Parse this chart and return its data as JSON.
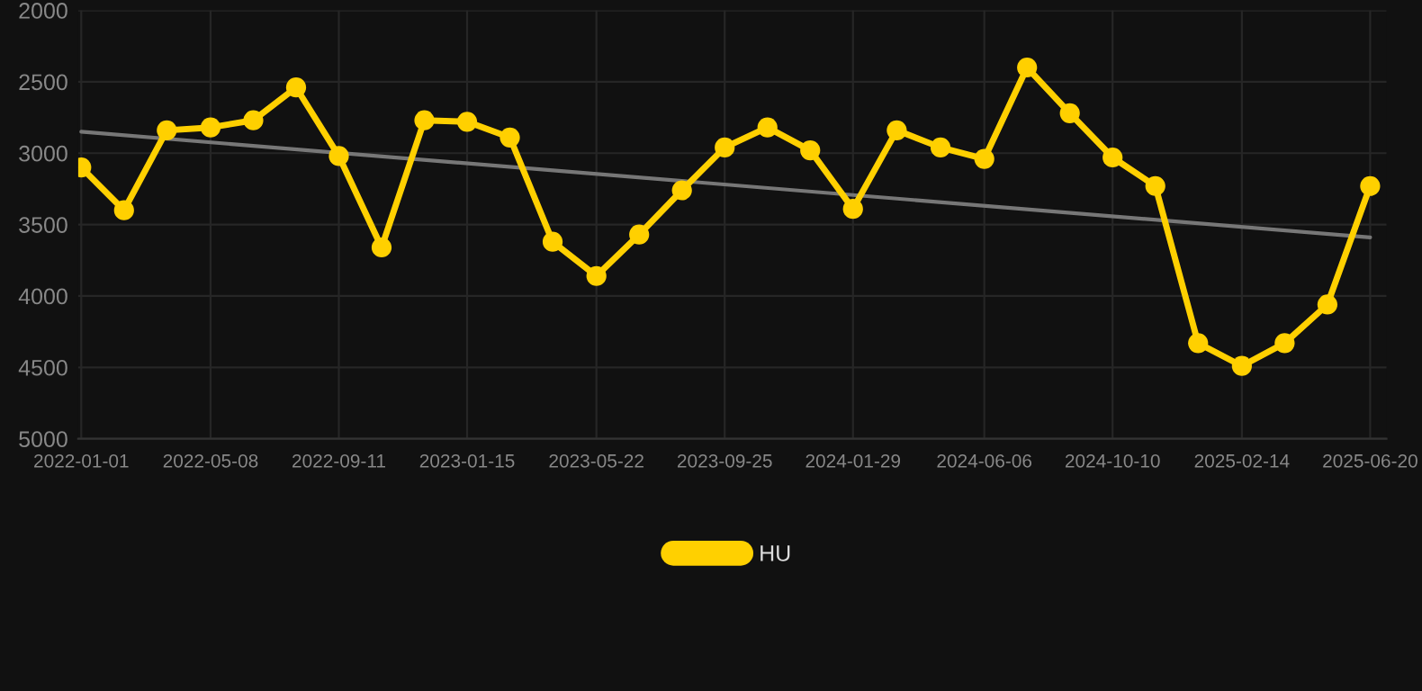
{
  "chart_data": {
    "type": "line",
    "xlim": [
      "2021-12-29",
      "2025-07-06"
    ],
    "xticks": [
      "2022-01-01",
      "2022-05-08",
      "2022-09-11",
      "2023-01-15",
      "2023-05-22",
      "2023-09-25",
      "2024-01-29",
      "2024-06-06",
      "2024-10-10",
      "2025-02-14",
      "2025-06-20"
    ],
    "ylim": [
      5000,
      2000
    ],
    "yticks": [
      2000,
      2500,
      3000,
      3500,
      4000,
      4500,
      5000
    ],
    "grid": true,
    "legend": "bottom",
    "marker": "circle",
    "line_style": "solid",
    "series": [
      {
        "name": "HU",
        "color": "#ffd000",
        "x": [
          "2022-01-01",
          "2022-02-12",
          "2022-03-26",
          "2022-05-08",
          "2022-06-19",
          "2022-07-31",
          "2022-09-11",
          "2022-10-23",
          "2022-12-04",
          "2023-01-15",
          "2023-02-26",
          "2023-04-09",
          "2023-05-22",
          "2023-07-03",
          "2023-08-14",
          "2023-09-25",
          "2023-11-06",
          "2023-12-18",
          "2024-01-29",
          "2024-03-12",
          "2024-04-24",
          "2024-06-06",
          "2024-07-18",
          "2024-08-29",
          "2024-10-10",
          "2024-11-21",
          "2025-01-02",
          "2025-02-14",
          "2025-03-28",
          "2025-05-09",
          "2025-06-20"
        ],
        "values": [
          3100,
          3400,
          2840,
          2820,
          2770,
          2540,
          3020,
          3660,
          2770,
          2780,
          2890,
          3620,
          3860,
          3570,
          3260,
          2960,
          2820,
          2980,
          3390,
          2840,
          2960,
          3040,
          2400,
          2720,
          3030,
          3230,
          4330,
          4490,
          4330,
          4060,
          3230
        ]
      },
      {
        "type": "line",
        "color": "#777777",
        "marker": "none",
        "x": [
          "2022-01-01",
          "2025-06-20"
        ],
        "values": [
          2850,
          3590
        ]
      }
    ]
  }
}
